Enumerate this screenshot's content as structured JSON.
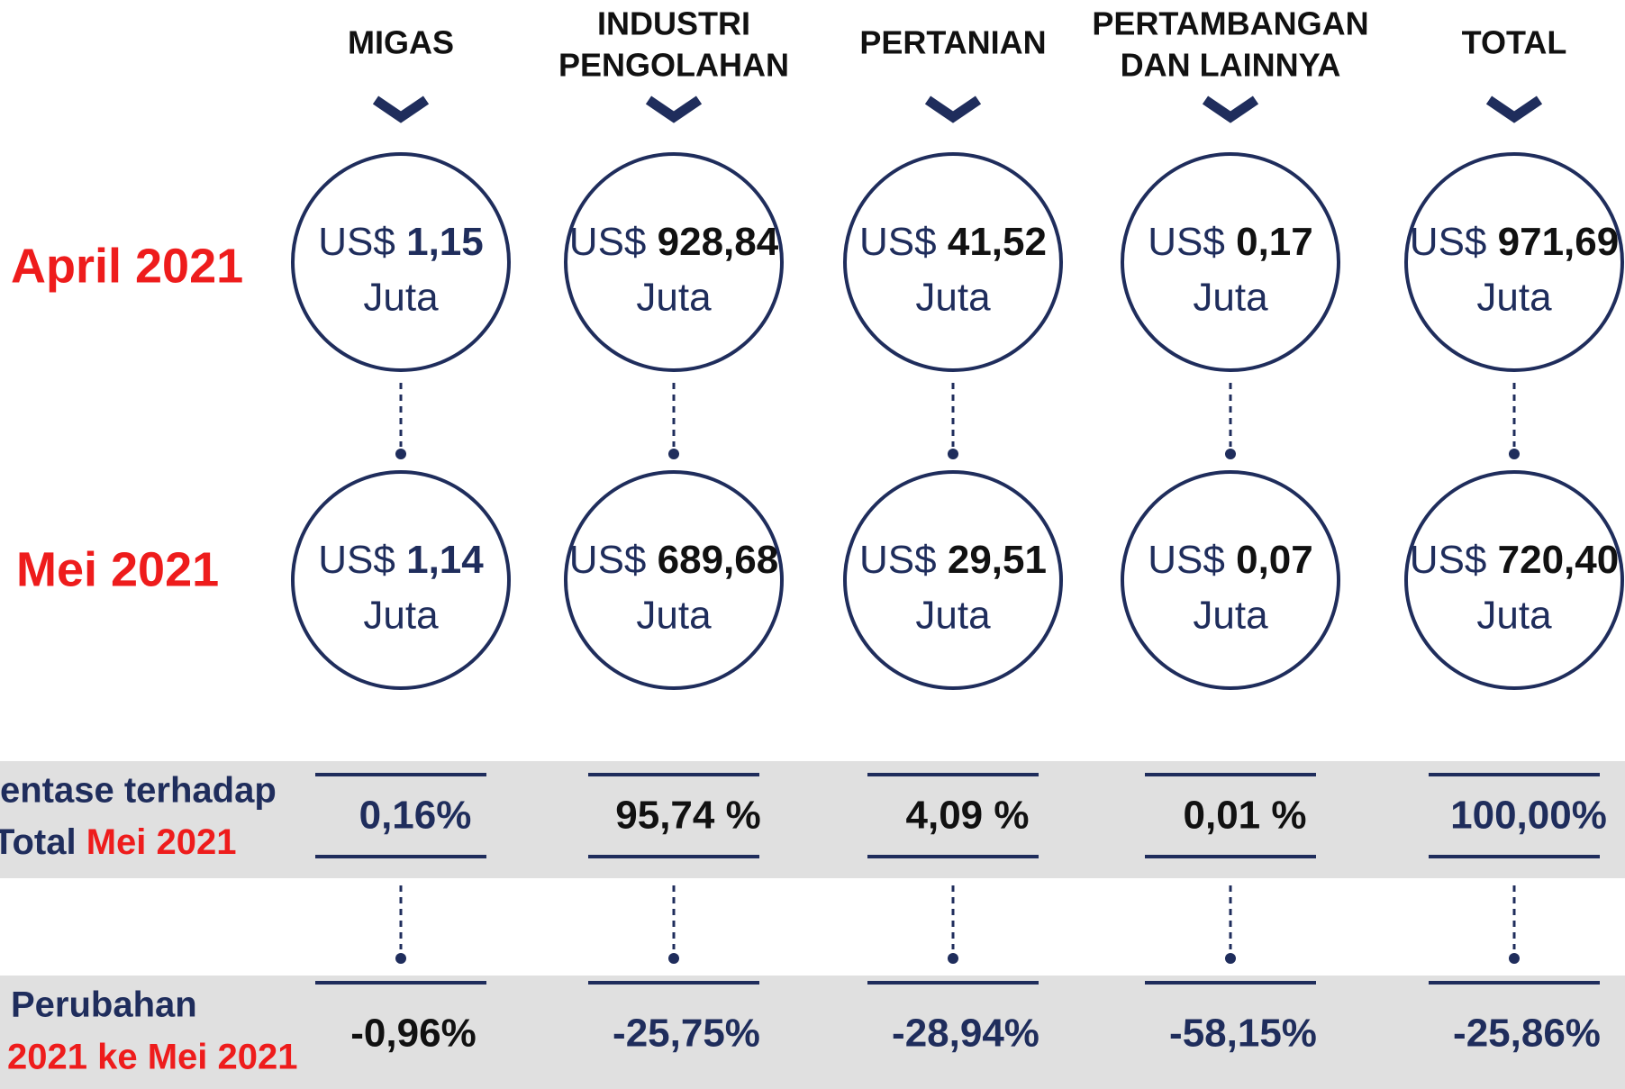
{
  "row_labels": {
    "april": "April 2021",
    "mei": "Mei 2021"
  },
  "currency": "US$",
  "unit": "Juta",
  "share_label": [
    "entase terhadap",
    "Total",
    "Mei 2021"
  ],
  "change_label": [
    "Perubahan",
    "2021 ke Mei 2021"
  ],
  "columns": [
    {
      "header": [
        "MIGAS"
      ],
      "april": "1,15",
      "mei": "1,14",
      "share": "0,16%",
      "change": "-0,96%"
    },
    {
      "header": [
        "INDUSTRI",
        "PENGOLAHAN"
      ],
      "april": "928,84",
      "mei": "689,68",
      "share": "95,74 %",
      "change": "-25,75%"
    },
    {
      "header": [
        "PERTANIAN"
      ],
      "april": "41,52",
      "mei": "29,51",
      "share": "4,09 %",
      "change": "-28,94%"
    },
    {
      "header": [
        "PERTAMBANGAN",
        "DAN LAINNYA"
      ],
      "april": "0,17",
      "mei": "0,07",
      "share": "0,01 %",
      "change": "-58,15%"
    },
    {
      "header": [
        "TOTAL"
      ],
      "april": "971,69",
      "mei": "720,40",
      "share": "100,00%",
      "change": "-25,86%"
    }
  ]
}
